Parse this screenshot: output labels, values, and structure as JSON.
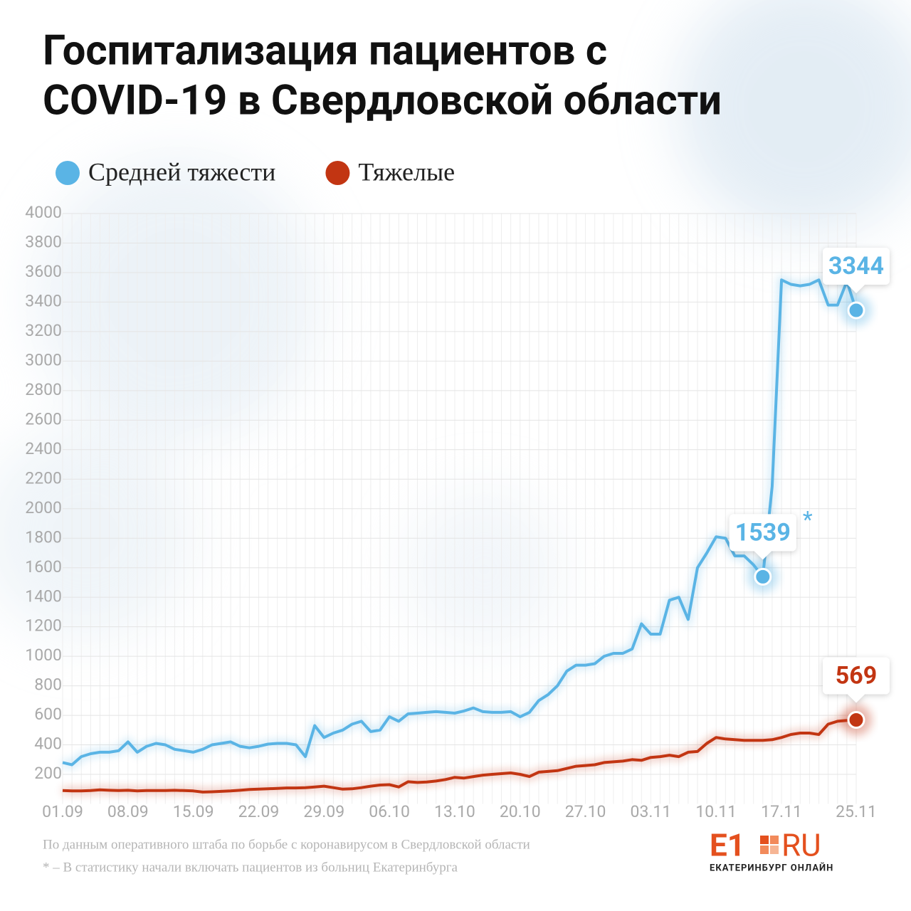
{
  "chart_data": {
    "type": "line",
    "title": [
      "Госпитализация пациентов с",
      "COVID-19 в Свердловской области"
    ],
    "categories": [
      "01.09",
      null,
      null,
      null,
      null,
      null,
      null,
      "08.09",
      null,
      null,
      null,
      null,
      null,
      null,
      "15.09",
      null,
      null,
      null,
      null,
      null,
      null,
      "22.09",
      null,
      null,
      null,
      null,
      null,
      null,
      "29.09",
      null,
      null,
      null,
      null,
      null,
      null,
      "06.10",
      null,
      null,
      null,
      null,
      null,
      null,
      "13.10",
      null,
      null,
      null,
      null,
      null,
      null,
      "20.10",
      null,
      null,
      null,
      null,
      null,
      null,
      "27.10",
      null,
      null,
      null,
      null,
      null,
      null,
      "03.11",
      null,
      null,
      null,
      null,
      null,
      null,
      "10.11",
      null,
      null,
      null,
      null,
      null,
      null,
      "17.11",
      null,
      null,
      null,
      null,
      null,
      null,
      null,
      "25.11"
    ],
    "series": [
      {
        "name": "Средней тяжести",
        "color": "#5ab4e5",
        "labeled": [
          75,
          85
        ],
        "values": [
          280,
          265,
          320,
          340,
          350,
          350,
          360,
          420,
          350,
          390,
          410,
          400,
          370,
          360,
          350,
          370,
          400,
          410,
          420,
          390,
          380,
          390,
          405,
          410,
          410,
          400,
          320,
          530,
          450,
          480,
          500,
          540,
          560,
          490,
          500,
          590,
          560,
          610,
          615,
          620,
          625,
          620,
          615,
          630,
          650,
          625,
          620,
          620,
          625,
          590,
          620,
          700,
          740,
          800,
          900,
          940,
          940,
          950,
          1000,
          1020,
          1020,
          1050,
          1220,
          1150,
          1150,
          1380,
          1400,
          1250,
          1600,
          1700,
          1810,
          1800,
          1680,
          1680,
          1620,
          1539,
          2150,
          3550,
          3520,
          3510,
          3520,
          3550,
          3380,
          3380,
          3540,
          3344
        ]
      },
      {
        "name": "Тяжелые",
        "color": "#c23512",
        "labeled": [
          85
        ],
        "values": [
          90,
          88,
          88,
          90,
          95,
          92,
          90,
          92,
          88,
          90,
          90,
          90,
          92,
          90,
          88,
          80,
          82,
          85,
          88,
          92,
          98,
          100,
          102,
          105,
          108,
          108,
          110,
          115,
          120,
          110,
          100,
          102,
          110,
          120,
          128,
          130,
          115,
          150,
          145,
          148,
          155,
          165,
          180,
          175,
          185,
          195,
          200,
          205,
          210,
          200,
          185,
          215,
          220,
          225,
          240,
          255,
          260,
          265,
          280,
          285,
          290,
          300,
          295,
          315,
          320,
          330,
          320,
          350,
          355,
          410,
          450,
          440,
          435,
          430,
          430,
          430,
          435,
          450,
          470,
          480,
          480,
          470,
          540,
          560,
          565,
          569
        ]
      }
    ],
    "ylim": [
      0,
      4000
    ],
    "yticks": [
      200,
      400,
      600,
      800,
      1000,
      1200,
      1400,
      1600,
      1800,
      2000,
      2200,
      2400,
      2600,
      2800,
      3000,
      3200,
      3400,
      3600,
      3800,
      4000
    ],
    "grid": true,
    "footnote_marker": "*",
    "source": "По данным оперативного штаба по борьбе с коронавирусом в Свердловской области",
    "note": "* – В статистику начали включать пациентов из больниц Екатеринбурга",
    "logo": {
      "main": "E1",
      "suffix": "RU",
      "tagline": "ЕКАТЕРИНБУРГ ОНЛАЙН"
    }
  }
}
